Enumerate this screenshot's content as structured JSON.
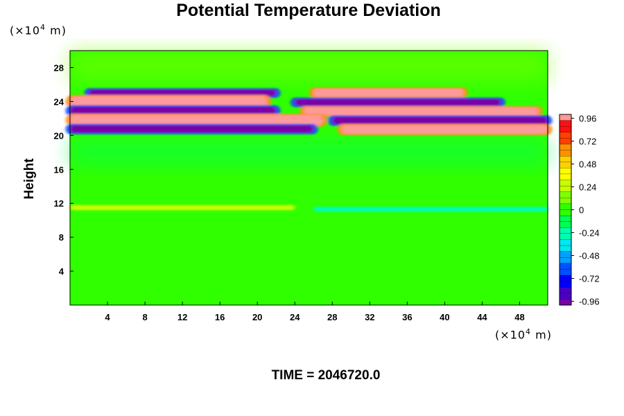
{
  "chart_data": {
    "type": "heatmap",
    "title": "Potential Temperature Deviation",
    "ylabel": "Height",
    "x_unit": {
      "base": "(×10",
      "exp": "4",
      "rest": " m)"
    },
    "y_unit": {
      "base": "(×10",
      "exp": "4",
      "rest": " m)"
    },
    "time_label": "TIME = 2046720.0",
    "xlim": [
      0,
      51
    ],
    "ylim": [
      0,
      30
    ],
    "x_ticks": [
      4,
      8,
      12,
      16,
      20,
      24,
      28,
      32,
      36,
      40,
      44,
      48
    ],
    "y_ticks": [
      4,
      8,
      12,
      16,
      20,
      24,
      28
    ],
    "colorbar": {
      "ticks": [
        "0.96",
        "0.72",
        "0.48",
        "0.24",
        "0",
        "-0.24",
        "-0.48",
        "-0.72",
        "-0.96"
      ],
      "tick_values": [
        0.96,
        0.72,
        0.48,
        0.24,
        0,
        -0.24,
        -0.48,
        -0.72,
        -0.96
      ],
      "range": [
        -1.0,
        1.0
      ],
      "colors": [
        "#7a00a8",
        "#4a00c8",
        "#0000ff",
        "#0050ff",
        "#00a0ff",
        "#00e8f0",
        "#00ffb0",
        "#00ff50",
        "#30ff00",
        "#80ff00",
        "#c8ff00",
        "#ffff00",
        "#ffd000",
        "#ff9000",
        "#ff4000",
        "#ff1010",
        "#ff9a9a"
      ],
      "levels": 32
    },
    "field_bands": [
      {
        "y_from": 24.6,
        "y_to": 25.4,
        "x_from": 2,
        "x_to": 22,
        "value": -0.96
      },
      {
        "y_from": 24.6,
        "y_to": 25.5,
        "x_from": 26,
        "x_to": 42,
        "value": 0.96
      },
      {
        "y_from": 23.4,
        "y_to": 24.6,
        "x_from": 0,
        "x_to": 21,
        "value": 0.96
      },
      {
        "y_from": 23.5,
        "y_to": 24.3,
        "x_from": 24,
        "x_to": 46,
        "value": -0.96
      },
      {
        "y_from": 22.4,
        "y_to": 23.4,
        "x_from": 0,
        "x_to": 22,
        "value": -0.96
      },
      {
        "y_from": 22.4,
        "y_to": 23.3,
        "x_from": 25,
        "x_to": 50,
        "value": 0.96
      },
      {
        "y_from": 21.2,
        "y_to": 22.4,
        "x_from": 0,
        "x_to": 27,
        "value": 0.96
      },
      {
        "y_from": 21.3,
        "y_to": 22.2,
        "x_from": 28,
        "x_to": 51,
        "value": -0.96
      },
      {
        "y_from": 20.3,
        "y_to": 21.2,
        "x_from": 0,
        "x_to": 26,
        "value": -0.96
      },
      {
        "y_from": 20.2,
        "y_to": 21.2,
        "x_from": 29,
        "x_to": 51,
        "value": 0.96
      },
      {
        "y_from": 11.2,
        "y_to": 11.8,
        "x_from": 0,
        "x_to": 24,
        "value": 0.3
      },
      {
        "y_from": 11.0,
        "y_to": 11.6,
        "x_from": 26,
        "x_to": 51,
        "value": -0.3
      }
    ]
  }
}
